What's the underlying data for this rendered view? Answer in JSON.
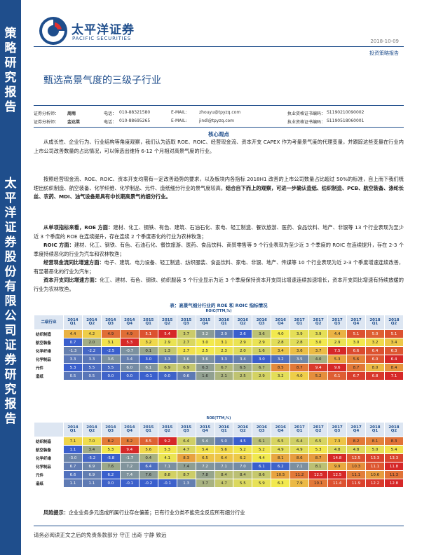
{
  "sidebar": {
    "top_label": "策\n略\n研\n究\n报\n告",
    "bottom_label": "太\n平\n洋\n证\n券\n股\n份\n有\n限\n公\n司\n证\n券\n研\n究\n报\n告"
  },
  "logo": {
    "cn": "太平洋证券",
    "en": "PACIFIC SECURITIES"
  },
  "header": {
    "date": "2018-10-09",
    "report_type": "投资策略报告"
  },
  "title": "甄选高景气度的三级子行业",
  "analysts": [
    {
      "role": "证券分析师：",
      "name": "周雨",
      "phone_label": "电话：",
      "phone": "010-88321580",
      "email_label": "E-MAIL:",
      "email": "zhouyu@tpyzq.com",
      "cert_label": "执业资格证书编码：",
      "cert": "S1190210090002"
    },
    {
      "role": "证券分析师：",
      "name": "金达莱",
      "phone_label": "电话：",
      "phone": "010-88695265",
      "email_label": "E-MAIL:",
      "email": "jindl@tpyzq.com",
      "cert_label": "执业资格证书编码：",
      "cert": "S1190518060001"
    }
  ],
  "key_points": {
    "title": "核心观点",
    "p1": "从成长性、企业行为、行业结构等角度观察，我们认为选取 ROE、ROIC、经营现金流、资本开支 CAPEX 作为考量景气度的代理变量，并跟踪这些变量在行业内上市公司改善数量的占比情况，可以筛选出维持 6-12 个月相对高景气度的行业。",
    "p2_normal": "按照经营现金流、ROE、ROIC、资本开支均需有一定改善趋势的要求，以及板块内各指标 2018H1 改善的上市公司数量占比超过 50%的标准，自上而下我们梳理出纺织制造、航空装备、化学纤维、化学制品、元件、造纸细分行业的景气度较高。",
    "p2_bold": "结合自下而上的观察，可进一步确认造纸、纺织制造、PCB、航空装备、涤纶长丝、农药、MDI、油气设备是具有中长期高景气的细分行业。",
    "s1_head": "从单项指标来看，ROE 方面：",
    "s1_text": "建材、化工、钢铁、有色、建筑、石油石化、家电、轻工制造、餐饮旅游、医药、食品饮料、地产、非银等 13 个行业表现为至少近 3 个季度的 ROE 在连续提升，存在连续 2 个季度恶化的行业为农林牧渔；",
    "s2_head": "ROIC 方面：",
    "s2_text": "建材、化工、钢铁、有色、石油石化、餐饮旅游、医药、食品饮料、商贸零售等 9 个行业表现为至少近 3 个季度的 ROIC 在连续提升，存在 2-3 个季度持续恶化的行业为汽车和农林牧渔；",
    "s3_head": "经营现金流同比增速方面：",
    "s3_text": "电子、建筑、电力设备、轻工制造、纺织服装、食品饮料、家电、非银、地产、传媒等 10 个行业表现为近 2-3 个季度增速连续改善，有显著恶化的行业为汽车；",
    "s4_head": "资本开支同比增速方面：",
    "s4_text": "化工、建材、有色、钢铁、纺织服装 5 个行业显示为近 3 个季度保持资本开支同比增速连续加速增长，资本开支同比增速有持续放缓的行业为农林牧渔。"
  },
  "table": {
    "caption": "表：高景气细分行业的 ROE 和 ROIC 指标情况",
    "roic_subtitle": "ROIC(TTM,%)",
    "roe_subtitle": "ROE(TTM,%)",
    "col_header_label": "二级行业",
    "quarters": [
      "2014\nQ1",
      "2014\nQ2",
      "2014\nQ3",
      "2014\nQ4",
      "2015\nQ1",
      "2015\nQ2",
      "2015\nQ3",
      "2015\nQ4",
      "2016\nQ1",
      "2016\nQ2",
      "2016\nQ3",
      "2016\nQ4",
      "2017\nQ1",
      "2017\nQ2",
      "2017\nQ3",
      "2017\nQ4",
      "2018\nQ1",
      "2018\nQ2"
    ],
    "roic_rows": [
      {
        "name": "纺织制造",
        "values": [
          4.4,
          4.2,
          4.9,
          4.9,
          5.1,
          5.4,
          3.7,
          3.2,
          2.9,
          2.6,
          3.6,
          4.0,
          3.9,
          3.9,
          4.4,
          5.1,
          5.0,
          5.1
        ]
      },
      {
        "name": "航空装备",
        "values": [
          0.7,
          2.0,
          3.1,
          5.3,
          3.2,
          2.9,
          2.7,
          3.0,
          3.1,
          2.9,
          2.9,
          2.8,
          2.8,
          3.0,
          2.9,
          3.0,
          3.2,
          3.4
        ]
      },
      {
        "name": "化学纤维",
        "values": [
          -1.3,
          -2.2,
          -2.5,
          -0.7,
          0.1,
          1.3,
          2.7,
          2.5,
          2.3,
          2.0,
          1.6,
          3.4,
          3.6,
          3.7,
          7.5,
          6.6,
          6.4,
          6.3
        ]
      },
      {
        "name": "化学制品",
        "values": [
          3.3,
          3.3,
          3.6,
          3.4,
          3.0,
          3.3,
          3.6,
          3.6,
          3.3,
          3.4,
          3.0,
          3.2,
          3.5,
          4.0,
          5.3,
          5.6,
          6.0,
          6.4
        ]
      },
      {
        "name": "元件",
        "values": [
          5.3,
          5.5,
          5.5,
          6.0,
          6.1,
          6.9,
          6.9,
          6.3,
          6.7,
          6.5,
          6.7,
          8.5,
          8.7,
          9.4,
          9.6,
          8.7,
          8.0,
          8.4
        ]
      },
      {
        "name": "造纸",
        "values": [
          0.5,
          0.5,
          0.0,
          0.0,
          -0.1,
          0.0,
          0.6,
          1.6,
          2.1,
          2.5,
          2.9,
          3.2,
          4.0,
          5.2,
          6.1,
          6.7,
          6.8,
          7.1
        ]
      }
    ],
    "roe_rows": [
      {
        "name": "纺织制造",
        "values": [
          7.1,
          7.0,
          8.2,
          8.2,
          8.5,
          9.2,
          6.4,
          5.4,
          5.0,
          4.5,
          6.1,
          6.5,
          6.4,
          6.5,
          7.3,
          8.2,
          8.1,
          8.3
        ]
      },
      {
        "name": "航空装备",
        "values": [
          1.1,
          3.4,
          5.3,
          9.4,
          5.6,
          5.3,
          4.7,
          5.4,
          5.6,
          5.2,
          5.2,
          4.9,
          4.9,
          5.3,
          4.8,
          4.8,
          5.0,
          5.4
        ]
      },
      {
        "name": "化学纤维",
        "values": [
          -3.0,
          -5.2,
          -5.8,
          -1.7,
          0.4,
          4.1,
          8.3,
          6.5,
          6.4,
          6.2,
          4.4,
          8.1,
          8.6,
          8.7,
          14.8,
          12.5,
          13.3,
          13.3
        ]
      },
      {
        "name": "化学制品",
        "values": [
          6.7,
          6.9,
          7.6,
          7.2,
          6.4,
          7.1,
          7.4,
          7.2,
          7.1,
          7.0,
          6.1,
          6.2,
          7.1,
          8.1,
          9.9,
          10.3,
          11.1,
          11.8
        ]
      },
      {
        "name": "元件",
        "values": [
          6.6,
          6.9,
          6.2,
          7.4,
          7.6,
          8.8,
          8.7,
          7.8,
          8.4,
          8.4,
          8.6,
          10.5,
          11.2,
          12.5,
          12.5,
          11.1,
          10.6,
          11.3
        ]
      },
      {
        "name": "造纸",
        "values": [
          1.1,
          1.1,
          0.0,
          -0.1,
          -0.2,
          -0.1,
          1.3,
          3.7,
          4.7,
          5.5,
          5.9,
          6.3,
          7.9,
          10.1,
          11.4,
          11.9,
          12.2,
          12.8
        ]
      }
    ]
  },
  "risk": {
    "label": "风险提示：",
    "text": "企业业务多元造成所属行业存在偏差；已有行业分类不能完全反应所有细分行业"
  },
  "footer": "请务必阅读正文之后的免责条款部分  守正  出奇  宁静  致远",
  "colors": {
    "brand": "#1f4e8c",
    "low": "#3a5fcd",
    "mid": "#f2e94e",
    "high": "#d62828"
  }
}
